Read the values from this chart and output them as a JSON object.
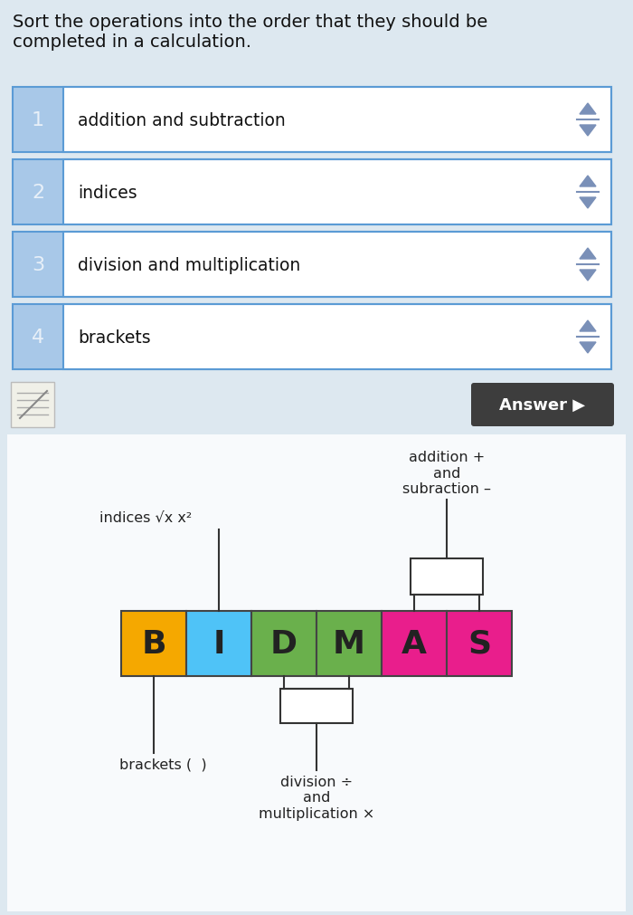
{
  "bg_color": "#dde8f0",
  "title_text": "Sort the operations into the order that they should be\ncompleted in a calculation.",
  "rows": [
    {
      "num": "1",
      "label": "addition and subtraction"
    },
    {
      "num": "2",
      "label": "indices"
    },
    {
      "num": "3",
      "label": "division and multiplication"
    },
    {
      "num": "4",
      "label": "brackets"
    }
  ],
  "row_bg": "#ffffff",
  "row_border": "#5b9bd5",
  "num_bg": "#a8c8e8",
  "num_color": "#ffffff",
  "arrow_color": "#7a90b8",
  "answer_bg": "#3d3d3d",
  "answer_text": "Answer ▶",
  "answer_color": "#ffffff",
  "bidmas_letters": [
    "B",
    "I",
    "D",
    "M",
    "A",
    "S"
  ],
  "bidmas_colors": [
    "#f5a800",
    "#4fc3f7",
    "#6ab04c",
    "#6ab04c",
    "#e91e8c",
    "#e91e8c"
  ],
  "bidmas_border": "#444444",
  "bidmas_section_bg": "#ffffff",
  "label_indices": "indices √x x²",
  "label_brackets": "brackets (  )",
  "label_division": "division ÷\nand\nmultiplication ×",
  "label_addition": "addition +\nand\nsubraction –",
  "note_text": "subraction –",
  "line_color": "#333333",
  "text_color": "#222222"
}
